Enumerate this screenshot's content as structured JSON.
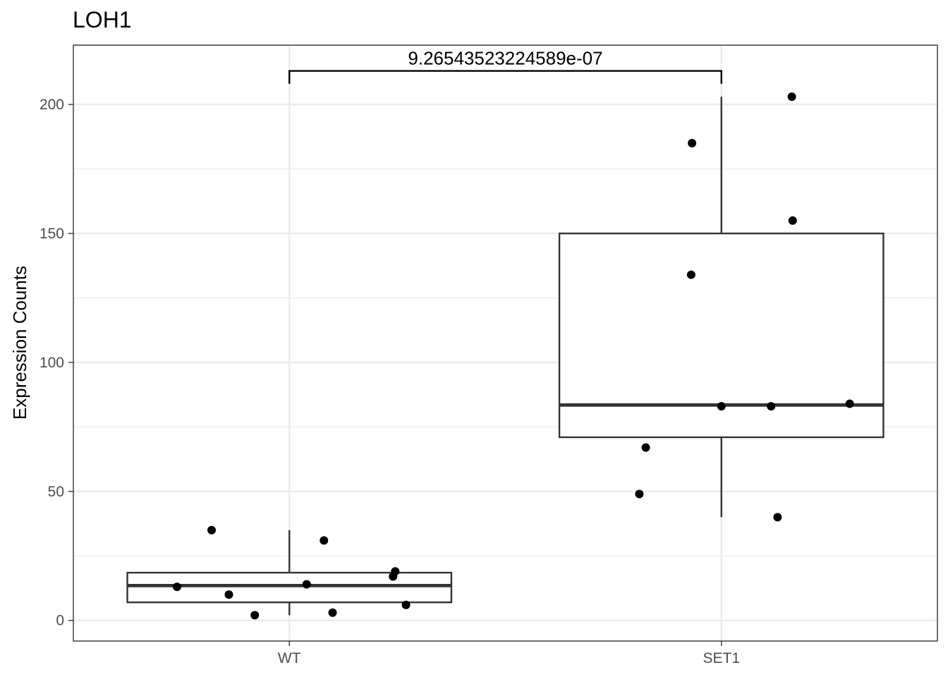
{
  "chart_data": {
    "type": "box",
    "title": "LOH1",
    "xlabel": "",
    "ylabel": "Expression Counts",
    "categories": [
      "WT",
      "SET1"
    ],
    "ylim": [
      -8,
      223
    ],
    "yticks": [
      0,
      50,
      100,
      150,
      200
    ],
    "grid": true,
    "legend": "none",
    "boxes": [
      {
        "category": "WT",
        "min": 2,
        "q1": 7,
        "median": 13.5,
        "q3": 18.5,
        "max": 35
      },
      {
        "category": "SET1",
        "min": 40,
        "q1": 71,
        "median": 83.5,
        "q3": 150,
        "max": 203
      }
    ],
    "points": [
      {
        "category": "WT",
        "jitter": -0.26,
        "y": 13
      },
      {
        "category": "WT",
        "jitter": -0.18,
        "y": 35
      },
      {
        "category": "WT",
        "jitter": -0.14,
        "y": 10
      },
      {
        "category": "WT",
        "jitter": -0.08,
        "y": 2
      },
      {
        "category": "WT",
        "jitter": 0.04,
        "y": 14
      },
      {
        "category": "WT",
        "jitter": 0.08,
        "y": 31
      },
      {
        "category": "WT",
        "jitter": 0.1,
        "y": 3
      },
      {
        "category": "WT",
        "jitter": 0.24,
        "y": 17
      },
      {
        "category": "WT",
        "jitter": 0.245,
        "y": 19
      },
      {
        "category": "WT",
        "jitter": 0.27,
        "y": 6
      },
      {
        "category": "SET1",
        "jitter": -0.19,
        "y": 49
      },
      {
        "category": "SET1",
        "jitter": -0.175,
        "y": 67
      },
      {
        "category": "SET1",
        "jitter": -0.07,
        "y": 134
      },
      {
        "category": "SET1",
        "jitter": -0.068,
        "y": 185
      },
      {
        "category": "SET1",
        "jitter": 0.0,
        "y": 83
      },
      {
        "category": "SET1",
        "jitter": 0.115,
        "y": 83
      },
      {
        "category": "SET1",
        "jitter": 0.13,
        "y": 40
      },
      {
        "category": "SET1",
        "jitter": 0.163,
        "y": 203
      },
      {
        "category": "SET1",
        "jitter": 0.165,
        "y": 155
      },
      {
        "category": "SET1",
        "jitter": 0.297,
        "y": 84
      }
    ],
    "annotation": {
      "label": "9.26543523224589e-07",
      "from": "WT",
      "to": "SET1",
      "y": 213,
      "tip": 208
    }
  }
}
